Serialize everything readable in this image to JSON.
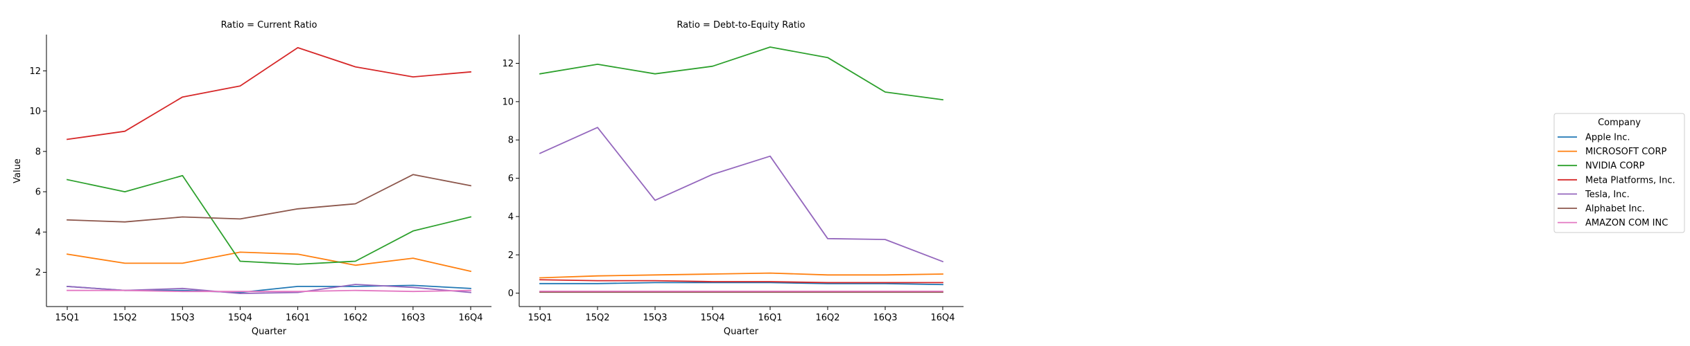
{
  "chart_data": [
    {
      "type": "line",
      "title": "Ratio = Current Ratio",
      "xlabel": "Quarter",
      "ylabel": "Value",
      "categories": [
        "15Q1",
        "15Q2",
        "15Q3",
        "15Q4",
        "16Q1",
        "16Q2",
        "16Q3",
        "16Q4"
      ],
      "ylim": [
        0.3,
        13.8
      ],
      "yticks": [
        2,
        4,
        6,
        8,
        10,
        12
      ],
      "series": [
        {
          "name": "Apple Inc.",
          "color": "#1f77b4",
          "values": [
            1.3,
            1.1,
            1.1,
            1.0,
            1.3,
            1.3,
            1.35,
            1.2
          ]
        },
        {
          "name": "MICROSOFT CORP",
          "color": "#ff7f0e",
          "values": [
            2.9,
            2.45,
            2.45,
            3.0,
            2.9,
            2.35,
            2.7,
            2.05
          ]
        },
        {
          "name": "NVIDIA CORP",
          "color": "#2ca02c",
          "values": [
            6.6,
            6.0,
            6.8,
            2.55,
            2.4,
            2.55,
            4.05,
            4.75
          ]
        },
        {
          "name": "Meta Platforms, Inc.",
          "color": "#d62728",
          "values": [
            8.6,
            9.0,
            10.7,
            11.25,
            13.15,
            12.2,
            11.7,
            11.95
          ]
        },
        {
          "name": "Tesla, Inc.",
          "color": "#9467bd",
          "values": [
            1.3,
            1.1,
            1.2,
            0.95,
            1.0,
            1.4,
            1.25,
            1.0
          ]
        },
        {
          "name": "Alphabet Inc.",
          "color": "#8c564b",
          "values": [
            4.6,
            4.5,
            4.75,
            4.65,
            5.15,
            5.4,
            6.85,
            6.3
          ]
        },
        {
          "name": "AMAZON COM INC",
          "color": "#e377c2",
          "values": [
            1.1,
            1.1,
            1.05,
            1.05,
            1.05,
            1.1,
            1.05,
            1.1
          ]
        }
      ]
    },
    {
      "type": "line",
      "title": "Ratio = Debt-to-Equity Ratio",
      "xlabel": "Quarter",
      "ylabel": "",
      "categories": [
        "15Q1",
        "15Q2",
        "15Q3",
        "15Q4",
        "16Q1",
        "16Q2",
        "16Q3",
        "16Q4"
      ],
      "ylim": [
        -0.7,
        13.5
      ],
      "yticks": [
        0,
        2,
        4,
        6,
        8,
        10,
        12
      ],
      "series": [
        {
          "name": "Apple Inc.",
          "color": "#1f77b4",
          "values": [
            0.5,
            0.5,
            0.55,
            0.55,
            0.55,
            0.5,
            0.5,
            0.45
          ]
        },
        {
          "name": "MICROSOFT CORP",
          "color": "#ff7f0e",
          "values": [
            0.8,
            0.9,
            0.95,
            1.0,
            1.05,
            0.95,
            0.95,
            1.0
          ]
        },
        {
          "name": "NVIDIA CORP",
          "color": "#2ca02c",
          "values": [
            11.45,
            11.95,
            11.45,
            11.85,
            12.85,
            12.3,
            10.5,
            10.1
          ]
        },
        {
          "name": "Meta Platforms, Inc.",
          "color": "#d62728",
          "values": [
            0.7,
            0.65,
            0.65,
            0.6,
            0.6,
            0.55,
            0.55,
            0.55
          ]
        },
        {
          "name": "Tesla, Inc.",
          "color": "#9467bd",
          "values": [
            7.3,
            8.65,
            4.85,
            6.2,
            7.15,
            2.85,
            2.8,
            1.65
          ]
        },
        {
          "name": "Alphabet Inc.",
          "color": "#8c564b",
          "values": [
            0.05,
            0.05,
            0.05,
            0.05,
            0.05,
            0.05,
            0.05,
            0.05
          ]
        },
        {
          "name": "AMAZON COM INC",
          "color": "#e377c2",
          "values": [
            0.1,
            0.1,
            0.1,
            0.1,
            0.1,
            0.1,
            0.1,
            0.1
          ]
        }
      ]
    }
  ],
  "legend": {
    "title": "Company",
    "placement": "right",
    "items": [
      {
        "label": "Apple Inc.",
        "color": "#1f77b4"
      },
      {
        "label": "MICROSOFT CORP",
        "color": "#ff7f0e"
      },
      {
        "label": "NVIDIA CORP",
        "color": "#2ca02c"
      },
      {
        "label": "Meta Platforms, Inc.",
        "color": "#d62728"
      },
      {
        "label": "Tesla, Inc.",
        "color": "#9467bd"
      },
      {
        "label": "Alphabet Inc.",
        "color": "#8c564b"
      },
      {
        "label": "AMAZON COM INC",
        "color": "#e377c2"
      }
    ]
  }
}
